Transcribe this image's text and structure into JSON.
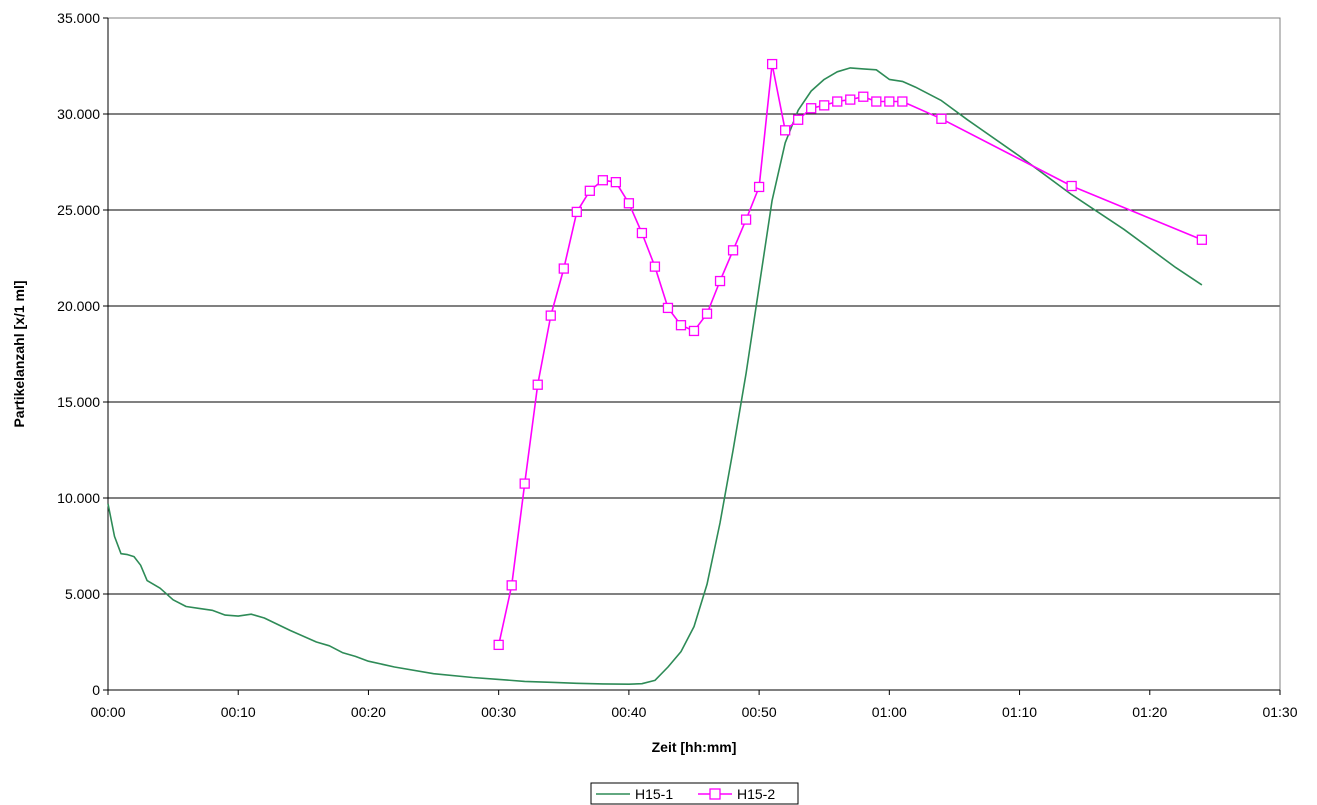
{
  "chart_data": {
    "type": "line",
    "title": "",
    "xlabel": "Zeit [hh:mm]",
    "ylabel": "Partikelanzahl [x/1 ml]",
    "x_unit": "minutes",
    "xlim": [
      0,
      90
    ],
    "ylim": [
      0,
      35000
    ],
    "x_ticks": [
      {
        "value": 0,
        "label": "00:00"
      },
      {
        "value": 10,
        "label": "00:10"
      },
      {
        "value": 20,
        "label": "00:20"
      },
      {
        "value": 30,
        "label": "00:30"
      },
      {
        "value": 40,
        "label": "00:40"
      },
      {
        "value": 50,
        "label": "00:50"
      },
      {
        "value": 60,
        "label": "01:00"
      },
      {
        "value": 70,
        "label": "01:10"
      },
      {
        "value": 80,
        "label": "01:20"
      },
      {
        "value": 90,
        "label": "01:30"
      }
    ],
    "y_ticks": [
      {
        "value": 0,
        "label": "0"
      },
      {
        "value": 5000,
        "label": "5.000"
      },
      {
        "value": 10000,
        "label": "10.000"
      },
      {
        "value": 15000,
        "label": "15.000"
      },
      {
        "value": 20000,
        "label": "20.000"
      },
      {
        "value": 25000,
        "label": "25.000"
      },
      {
        "value": 30000,
        "label": "30.000"
      },
      {
        "value": 35000,
        "label": "35.000"
      }
    ],
    "grid": "horizontal",
    "legend_position": "bottom-center",
    "series": [
      {
        "name": "H15-1",
        "color": "#2e8b57",
        "marker": "none",
        "x": [
          0,
          0.5,
          1,
          1.5,
          2,
          2.5,
          3,
          4,
          5,
          6,
          7,
          8,
          9,
          10,
          11,
          12,
          14,
          16,
          17,
          18,
          19,
          20,
          22,
          25,
          28,
          30,
          32,
          34,
          36,
          38,
          40,
          41,
          42,
          43,
          44,
          45,
          46,
          47,
          48,
          49,
          50,
          51,
          52,
          53,
          54,
          55,
          56,
          57,
          58,
          59,
          60,
          61,
          62,
          64,
          66,
          70,
          74,
          78,
          82,
          84
        ],
        "y": [
          9700,
          8000,
          7100,
          7050,
          6950,
          6500,
          5700,
          5300,
          4700,
          4350,
          4250,
          4150,
          3900,
          3850,
          3950,
          3750,
          3100,
          2500,
          2300,
          1950,
          1750,
          1500,
          1200,
          850,
          650,
          550,
          450,
          400,
          350,
          320,
          300,
          330,
          500,
          1200,
          2000,
          3300,
          5500,
          8700,
          12500,
          16500,
          21000,
          25500,
          28500,
          30200,
          31200,
          31800,
          32200,
          32400,
          32350,
          32300,
          31800,
          31700,
          31400,
          30700,
          29700,
          27800,
          25800,
          24000,
          22000,
          21100
        ]
      },
      {
        "name": "H15-2",
        "color": "#ff00ff",
        "marker": "square",
        "x": [
          30,
          31,
          32,
          33,
          34,
          35,
          36,
          37,
          38,
          39,
          40,
          41,
          42,
          43,
          44,
          45,
          46,
          47,
          48,
          49,
          50,
          51,
          52,
          53,
          54,
          55,
          56,
          57,
          58,
          59,
          60,
          61,
          64,
          74,
          84
        ],
        "y": [
          2350,
          5450,
          10750,
          15900,
          19500,
          21950,
          24900,
          26000,
          26550,
          26450,
          25350,
          23800,
          22050,
          19900,
          19000,
          18700,
          19600,
          21300,
          22900,
          24500,
          26200,
          32600,
          29150,
          29700,
          30300,
          30450,
          30650,
          30750,
          30900,
          30650,
          30650,
          30650,
          29750,
          26250,
          23450
        ]
      }
    ]
  }
}
